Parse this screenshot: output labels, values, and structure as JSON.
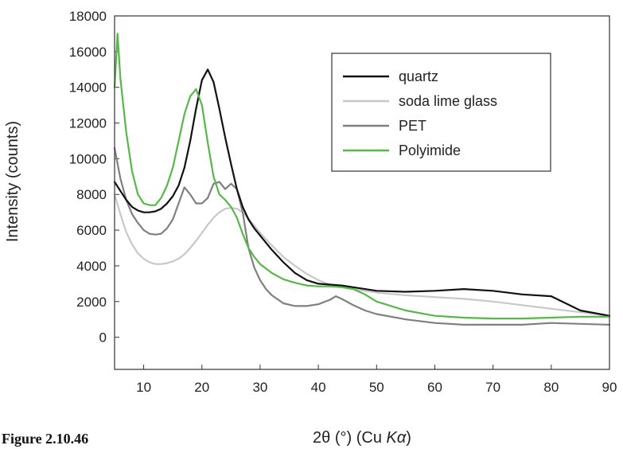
{
  "chart_data": {
    "type": "line",
    "title": "",
    "xlabel_parts": [
      "2θ (°) (Cu ",
      "Kα",
      ")"
    ],
    "ylabel": "Intensity (counts)",
    "xlim": [
      5,
      90
    ],
    "ylim": [
      -1800,
      18000
    ],
    "xticks": [
      10,
      20,
      30,
      40,
      50,
      60,
      70,
      80,
      90
    ],
    "yticks": [
      0,
      2000,
      4000,
      6000,
      8000,
      10000,
      12000,
      14000,
      16000,
      18000
    ],
    "legend_position": "top-right",
    "series": [
      {
        "name": "quartz",
        "color": "#111111",
        "x": [
          5,
          6,
          7,
          8,
          9,
          10,
          11,
          12,
          13,
          14,
          15,
          16,
          17,
          18,
          19,
          20,
          21,
          22,
          23,
          24,
          25,
          26,
          27,
          28,
          29,
          30,
          32,
          34,
          36,
          38,
          40,
          42,
          44,
          46,
          48,
          50,
          55,
          60,
          65,
          70,
          75,
          80,
          85,
          90
        ],
        "y": [
          8700,
          8200,
          7700,
          7300,
          7100,
          7000,
          7000,
          7050,
          7200,
          7500,
          7900,
          8500,
          9500,
          11000,
          12800,
          14400,
          15000,
          14300,
          12800,
          11200,
          9700,
          8300,
          7300,
          6600,
          6100,
          5700,
          4900,
          4200,
          3600,
          3200,
          3000,
          2950,
          2900,
          2800,
          2700,
          2600,
          2550,
          2600,
          2700,
          2600,
          2400,
          2300,
          1500,
          1200
        ]
      },
      {
        "name": "soda lime glass",
        "color": "#c8c8c8",
        "x": [
          5,
          6,
          7,
          8,
          9,
          10,
          11,
          12,
          13,
          14,
          15,
          16,
          17,
          18,
          19,
          20,
          21,
          22,
          23,
          24,
          25,
          26,
          27,
          28,
          29,
          30,
          32,
          34,
          36,
          38,
          40,
          42,
          45,
          50,
          55,
          60,
          65,
          70,
          75,
          80,
          85,
          90
        ],
        "y": [
          8000,
          6900,
          5900,
          5200,
          4700,
          4400,
          4200,
          4100,
          4100,
          4150,
          4250,
          4400,
          4650,
          5000,
          5400,
          5850,
          6300,
          6700,
          7000,
          7200,
          7250,
          7200,
          7000,
          6650,
          6250,
          5850,
          5150,
          4500,
          4000,
          3550,
          3200,
          2950,
          2750,
          2500,
          2350,
          2250,
          2150,
          2000,
          1800,
          1600,
          1400,
          1200
        ]
      },
      {
        "name": "PET",
        "color": "#808080",
        "x": [
          5,
          6,
          7,
          8,
          9,
          10,
          11,
          12,
          13,
          14,
          15,
          16,
          17,
          18,
          19,
          20,
          21,
          22,
          23,
          24,
          25,
          26,
          27,
          28,
          29,
          30,
          31,
          32,
          34,
          36,
          38,
          40,
          42,
          43,
          44,
          46,
          48,
          50,
          55,
          60,
          65,
          70,
          75,
          80,
          85,
          90
        ],
        "y": [
          10600,
          8900,
          7700,
          6900,
          6400,
          6000,
          5800,
          5750,
          5800,
          6100,
          6600,
          7500,
          8400,
          8000,
          7500,
          7500,
          7800,
          8600,
          8700,
          8300,
          8600,
          8300,
          7000,
          5000,
          3900,
          3200,
          2700,
          2350,
          1900,
          1750,
          1750,
          1850,
          2100,
          2300,
          2150,
          1800,
          1500,
          1300,
          1000,
          800,
          700,
          700,
          700,
          800,
          750,
          700
        ]
      },
      {
        "name": "Polyimide",
        "color": "#55b847",
        "x": [
          5,
          5.5,
          6,
          7,
          8,
          9,
          10,
          11,
          12,
          13,
          14,
          15,
          16,
          17,
          18,
          19,
          20,
          21,
          22,
          23,
          24,
          25,
          26,
          27,
          28,
          29,
          30,
          32,
          34,
          36,
          38,
          40,
          42,
          44,
          46,
          48,
          50,
          55,
          60,
          65,
          70,
          75,
          80,
          85,
          90
        ],
        "y": [
          14000,
          17000,
          14500,
          11500,
          9300,
          8000,
          7500,
          7400,
          7400,
          7800,
          8500,
          9500,
          11000,
          12500,
          13500,
          13900,
          13000,
          10900,
          9000,
          8000,
          7700,
          7300,
          6700,
          5800,
          5000,
          4500,
          4100,
          3600,
          3250,
          3050,
          2900,
          2850,
          2850,
          2800,
          2700,
          2400,
          2000,
          1500,
          1200,
          1100,
          1050,
          1050,
          1100,
          1150,
          1150
        ]
      }
    ]
  },
  "caption": {
    "text": "Figure 2.10.46"
  }
}
